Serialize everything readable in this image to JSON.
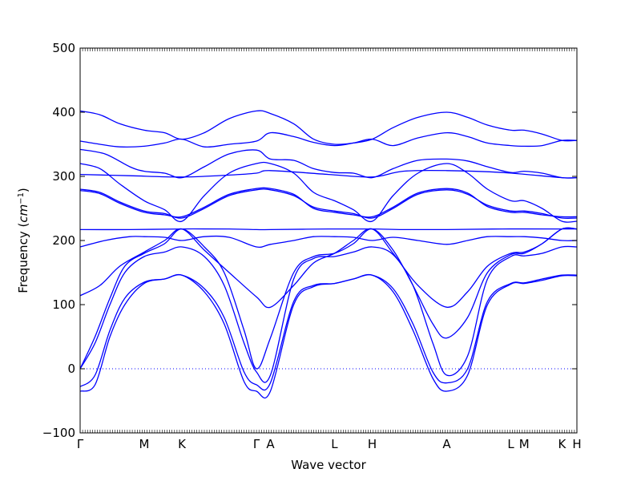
{
  "chart_data": {
    "type": "line",
    "xlabel": "Wave vector",
    "ylabel_main": "Frequency (",
    "ylabel_italic": "cm",
    "ylabel_sup": "−1",
    "ylabel_close": ")",
    "ylim": [
      -100,
      500
    ],
    "yticks": [
      -100,
      0,
      100,
      200,
      300,
      400,
      500
    ],
    "zero_line": true,
    "line_color": "#0000ff",
    "high_symmetry_points": [
      {
        "label": "Γ",
        "x": 0.0
      },
      {
        "label": "M",
        "x": 0.129
      },
      {
        "label": "K",
        "x": 0.205
      },
      {
        "label": "Γ",
        "x": 0.355
      },
      {
        "label": "A",
        "x": 0.383
      },
      {
        "label": "L",
        "x": 0.512
      },
      {
        "label": "H",
        "x": 0.588
      },
      {
        "label": "A",
        "x": 0.738
      },
      {
        "label": "L",
        "x": 0.867
      },
      {
        "label": "M",
        "x": 0.894
      },
      {
        "label": "K",
        "x": 0.97
      },
      {
        "label": "H",
        "x": 1.0
      }
    ],
    "series": [
      {
        "x": [
          0,
          0.03,
          0.06,
          0.09,
          0.129,
          0.17,
          0.205,
          0.25,
          0.29,
          0.33,
          0.355,
          0.383,
          0.43,
          0.47,
          0.512,
          0.55,
          0.588,
          0.63,
          0.67,
          0.71,
          0.738,
          0.78,
          0.82,
          0.867,
          0.894,
          0.93,
          0.97,
          1.0
        ],
        "values": [
          -35,
          -25,
          50,
          100,
          133,
          140,
          146,
          120,
          70,
          -20,
          -35,
          -35,
          100,
          128,
          133,
          140,
          146,
          120,
          60,
          -15,
          -35,
          -10,
          100,
          132,
          133,
          138,
          145,
          145
        ]
      },
      {
        "x": [
          0,
          0.03,
          0.06,
          0.09,
          0.129,
          0.17,
          0.205,
          0.25,
          0.29,
          0.33,
          0.355,
          0.383,
          0.43,
          0.47,
          0.512,
          0.55,
          0.588,
          0.63,
          0.67,
          0.71,
          0.738,
          0.78,
          0.82,
          0.867,
          0.894,
          0.93,
          0.97,
          1.0
        ],
        "values": [
          -28,
          -10,
          60,
          110,
          135,
          140,
          146,
          125,
          80,
          -5,
          -25,
          -22,
          105,
          130,
          133,
          140,
          146,
          125,
          70,
          -5,
          -22,
          0,
          105,
          133,
          134,
          140,
          146,
          146
        ]
      },
      {
        "x": [
          0,
          0.03,
          0.06,
          0.09,
          0.129,
          0.17,
          0.205,
          0.25,
          0.29,
          0.33,
          0.355,
          0.383,
          0.43,
          0.47,
          0.512,
          0.55,
          0.588,
          0.63,
          0.67,
          0.71,
          0.738,
          0.78,
          0.82,
          0.867,
          0.894,
          0.93,
          0.97,
          1.0
        ],
        "values": [
          0,
          40,
          100,
          150,
          175,
          182,
          190,
          175,
          130,
          40,
          -5,
          -10,
          140,
          172,
          175,
          182,
          190,
          178,
          130,
          40,
          -10,
          20,
          140,
          175,
          176,
          180,
          190,
          190
        ]
      },
      {
        "x": [
          0,
          0.03,
          0.06,
          0.09,
          0.129,
          0.17,
          0.205,
          0.25,
          0.29,
          0.33,
          0.355,
          0.383,
          0.43,
          0.47,
          0.512,
          0.55,
          0.588,
          0.63,
          0.67,
          0.71,
          0.738,
          0.78,
          0.82,
          0.867,
          0.894,
          0.93,
          0.97,
          1.0
        ],
        "values": [
          0,
          50,
          110,
          160,
          180,
          195,
          218,
          190,
          150,
          60,
          0,
          48,
          150,
          175,
          180,
          195,
          218,
          185,
          130,
          70,
          48,
          80,
          150,
          178,
          180,
          195,
          218,
          218
        ]
      },
      {
        "x": [
          0,
          0.04,
          0.08,
          0.129,
          0.17,
          0.205,
          0.25,
          0.3,
          0.355,
          0.383,
          0.43,
          0.47,
          0.512,
          0.55,
          0.588,
          0.63,
          0.68,
          0.738,
          0.78,
          0.82,
          0.867,
          0.894,
          0.93,
          0.97,
          1.0
        ],
        "values": [
          114,
          130,
          160,
          182,
          200,
          218,
          185,
          150,
          112,
          96,
          130,
          165,
          180,
          200,
          218,
          180,
          130,
          96,
          120,
          160,
          180,
          182,
          195,
          218,
          218
        ]
      },
      {
        "x": [
          0,
          0.05,
          0.1,
          0.129,
          0.17,
          0.205,
          0.25,
          0.3,
          0.355,
          0.383,
          0.43,
          0.47,
          0.512,
          0.55,
          0.588,
          0.63,
          0.68,
          0.738,
          0.78,
          0.82,
          0.867,
          0.894,
          0.93,
          0.97,
          1.0
        ],
        "values": [
          190,
          200,
          206,
          206,
          205,
          200,
          206,
          205,
          190,
          194,
          200,
          206,
          206,
          205,
          200,
          205,
          200,
          194,
          200,
          206,
          206,
          206,
          204,
          200,
          200
        ]
      },
      {
        "x": [
          0,
          0.1,
          0.205,
          0.3,
          0.355,
          0.383,
          0.5,
          0.588,
          0.65,
          0.738,
          0.85,
          0.97,
          1.0
        ],
        "values": [
          217,
          217,
          218,
          218,
          217,
          217,
          218,
          218,
          217,
          217,
          218,
          218,
          218
        ]
      },
      {
        "x": [
          0,
          0.04,
          0.08,
          0.129,
          0.17,
          0.205,
          0.25,
          0.3,
          0.355,
          0.383,
          0.43,
          0.47,
          0.512,
          0.55,
          0.588,
          0.63,
          0.68,
          0.738,
          0.78,
          0.82,
          0.867,
          0.894,
          0.93,
          0.97,
          1.0
        ],
        "values": [
          280,
          275,
          260,
          246,
          242,
          235,
          250,
          270,
          279,
          279,
          270,
          252,
          246,
          242,
          235,
          250,
          272,
          279,
          272,
          255,
          246,
          246,
          242,
          235,
          235
        ]
      },
      {
        "x": [
          0,
          0.04,
          0.08,
          0.129,
          0.17,
          0.205,
          0.25,
          0.3,
          0.355,
          0.383,
          0.43,
          0.47,
          0.512,
          0.55,
          0.588,
          0.63,
          0.68,
          0.738,
          0.78,
          0.82,
          0.867,
          0.894,
          0.93,
          0.97,
          1.0
        ],
        "values": [
          278,
          273,
          258,
          244,
          240,
          237,
          252,
          272,
          281,
          281,
          272,
          250,
          244,
          240,
          237,
          252,
          274,
          281,
          274,
          253,
          244,
          244,
          240,
          237,
          237
        ]
      },
      {
        "x": [
          0,
          0.04,
          0.08,
          0.129,
          0.17,
          0.205,
          0.25,
          0.3,
          0.355,
          0.383,
          0.43,
          0.47,
          0.512,
          0.55,
          0.588,
          0.63,
          0.68,
          0.738,
          0.78,
          0.82,
          0.867,
          0.894,
          0.93,
          0.97,
          1.0
        ],
        "values": [
          320,
          312,
          288,
          262,
          248,
          230,
          270,
          305,
          320,
          320,
          305,
          275,
          262,
          248,
          230,
          270,
          305,
          320,
          305,
          280,
          262,
          262,
          250,
          230,
          230
        ]
      },
      {
        "x": [
          0,
          0.05,
          0.1,
          0.129,
          0.17,
          0.205,
          0.25,
          0.3,
          0.355,
          0.383,
          0.43,
          0.47,
          0.512,
          0.55,
          0.588,
          0.63,
          0.68,
          0.738,
          0.78,
          0.82,
          0.867,
          0.894,
          0.93,
          0.97,
          1.0
        ],
        "values": [
          342,
          335,
          315,
          308,
          305,
          298,
          315,
          335,
          341,
          327,
          325,
          312,
          306,
          305,
          298,
          312,
          325,
          327,
          324,
          315,
          306,
          308,
          305,
          298,
          298
        ]
      },
      {
        "x": [
          0,
          0.1,
          0.205,
          0.3,
          0.355,
          0.383,
          0.5,
          0.588,
          0.65,
          0.738,
          0.85,
          0.97,
          1.0
        ],
        "values": [
          303,
          301,
          299,
          302,
          305,
          309,
          303,
          299,
          308,
          309,
          306,
          298,
          298
        ]
      },
      {
        "x": [
          0,
          0.04,
          0.08,
          0.129,
          0.17,
          0.205,
          0.25,
          0.3,
          0.355,
          0.383,
          0.43,
          0.47,
          0.512,
          0.55,
          0.588,
          0.63,
          0.68,
          0.738,
          0.78,
          0.82,
          0.867,
          0.894,
          0.93,
          0.97,
          1.0
        ],
        "values": [
          355,
          350,
          346,
          347,
          352,
          358,
          346,
          350,
          355,
          368,
          362,
          353,
          348,
          352,
          358,
          348,
          360,
          368,
          362,
          352,
          348,
          347,
          348,
          356,
          356
        ]
      },
      {
        "x": [
          0,
          0.04,
          0.08,
          0.129,
          0.17,
          0.205,
          0.25,
          0.3,
          0.355,
          0.383,
          0.43,
          0.47,
          0.512,
          0.55,
          0.588,
          0.63,
          0.68,
          0.738,
          0.78,
          0.82,
          0.867,
          0.894,
          0.93,
          0.97,
          1.0
        ],
        "values": [
          402,
          396,
          382,
          372,
          368,
          358,
          368,
          390,
          402,
          398,
          382,
          358,
          350,
          352,
          358,
          376,
          392,
          400,
          392,
          380,
          372,
          372,
          366,
          356,
          356
        ]
      }
    ]
  }
}
